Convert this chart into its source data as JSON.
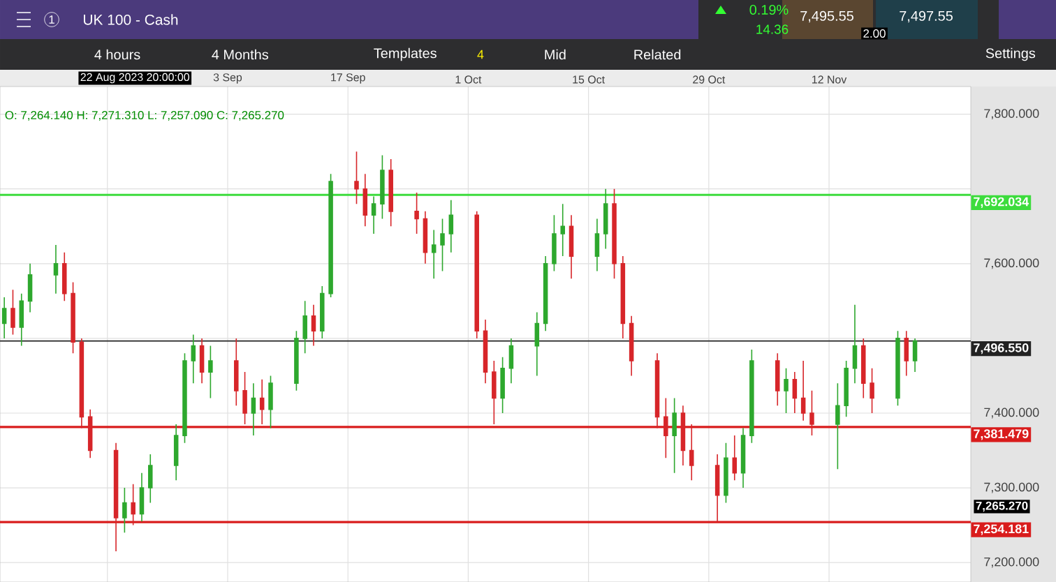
{
  "chart_data": {
    "type": "candlestick",
    "title": "UK 100 - Cash",
    "x": [
      "2023-08-08",
      "2023-08-09",
      "2023-08-10",
      "2023-08-11",
      "2023-08-14",
      "2023-08-15",
      "2023-08-16",
      "2023-08-17",
      "2023-08-18",
      "2023-08-21",
      "2023-08-22",
      "2023-08-23",
      "2023-08-24",
      "2023-08-25",
      "2023-08-28",
      "2023-08-29",
      "2023-08-30",
      "2023-08-31",
      "2023-09-01",
      "2023-09-04",
      "2023-09-05",
      "2023-09-06",
      "2023-09-07",
      "2023-09-08",
      "2023-09-11",
      "2023-09-12",
      "2023-09-13",
      "2023-09-14",
      "2023-09-15",
      "2023-09-18",
      "2023-09-19",
      "2023-09-20",
      "2023-09-21",
      "2023-09-22",
      "2023-09-25",
      "2023-09-26",
      "2023-09-27",
      "2023-09-28",
      "2023-09-29",
      "2023-10-02",
      "2023-10-03",
      "2023-10-04",
      "2023-10-05",
      "2023-10-06",
      "2023-10-09",
      "2023-10-10",
      "2023-10-11",
      "2023-10-12",
      "2023-10-13",
      "2023-10-16",
      "2023-10-17",
      "2023-10-18",
      "2023-10-19",
      "2023-10-20",
      "2023-10-23",
      "2023-10-24",
      "2023-10-25",
      "2023-10-26",
      "2023-10-27",
      "2023-10-30",
      "2023-10-31",
      "2023-11-01",
      "2023-11-02",
      "2023-11-03",
      "2023-11-06",
      "2023-11-07",
      "2023-11-08",
      "2023-11-09",
      "2023-11-10",
      "2023-11-13",
      "2023-11-14",
      "2023-11-15",
      "2023-11-16",
      "2023-11-17",
      "2023-11-20",
      "2023-11-21",
      "2023-11-22"
    ],
    "ohlc": [
      [
        7520,
        7555,
        7500,
        7540
      ],
      [
        7540,
        7565,
        7505,
        7515
      ],
      [
        7515,
        7560,
        7490,
        7550
      ],
      [
        7550,
        7600,
        7535,
        7585
      ],
      [
        7585,
        7625,
        7560,
        7600
      ],
      [
        7600,
        7615,
        7550,
        7560
      ],
      [
        7560,
        7575,
        7480,
        7495
      ],
      [
        7495,
        7500,
        7380,
        7395
      ],
      [
        7395,
        7405,
        7340,
        7350
      ],
      [
        7350,
        7360,
        7215,
        7260
      ],
      [
        7260,
        7300,
        7240,
        7280
      ],
      [
        7280,
        7305,
        7250,
        7265
      ],
      [
        7265,
        7320,
        7255,
        7300
      ],
      [
        7300,
        7345,
        7280,
        7330
      ],
      [
        7330,
        7385,
        7310,
        7370
      ],
      [
        7370,
        7480,
        7360,
        7470
      ],
      [
        7470,
        7505,
        7440,
        7490
      ],
      [
        7490,
        7500,
        7440,
        7455
      ],
      [
        7455,
        7490,
        7420,
        7470
      ],
      [
        7470,
        7500,
        7410,
        7430
      ],
      [
        7430,
        7455,
        7385,
        7400
      ],
      [
        7400,
        7440,
        7370,
        7420
      ],
      [
        7420,
        7445,
        7385,
        7405
      ],
      [
        7405,
        7450,
        7380,
        7440
      ],
      [
        7440,
        7510,
        7430,
        7500
      ],
      [
        7500,
        7550,
        7480,
        7530
      ],
      [
        7530,
        7545,
        7490,
        7510
      ],
      [
        7510,
        7570,
        7500,
        7560
      ],
      [
        7560,
        7720,
        7555,
        7710
      ],
      [
        7710,
        7750,
        7680,
        7700
      ],
      [
        7700,
        7720,
        7650,
        7665
      ],
      [
        7665,
        7690,
        7640,
        7680
      ],
      [
        7680,
        7745,
        7660,
        7725
      ],
      [
        7725,
        7740,
        7650,
        7670
      ],
      [
        7670,
        7695,
        7640,
        7660
      ],
      [
        7660,
        7670,
        7600,
        7615
      ],
      [
        7615,
        7645,
        7580,
        7625
      ],
      [
        7625,
        7660,
        7590,
        7640
      ],
      [
        7640,
        7685,
        7615,
        7665
      ],
      [
        7665,
        7670,
        7500,
        7510
      ],
      [
        7510,
        7525,
        7440,
        7455
      ],
      [
        7455,
        7470,
        7385,
        7420
      ],
      [
        7420,
        7475,
        7400,
        7460
      ],
      [
        7460,
        7500,
        7440,
        7490
      ],
      [
        7490,
        7535,
        7450,
        7520
      ],
      [
        7520,
        7610,
        7510,
        7600
      ],
      [
        7600,
        7665,
        7590,
        7640
      ],
      [
        7640,
        7680,
        7610,
        7650
      ],
      [
        7650,
        7665,
        7580,
        7610
      ],
      [
        7610,
        7660,
        7590,
        7640
      ],
      [
        7640,
        7700,
        7620,
        7680
      ],
      [
        7680,
        7700,
        7580,
        7600
      ],
      [
        7600,
        7610,
        7500,
        7520
      ],
      [
        7520,
        7530,
        7450,
        7470
      ],
      [
        7470,
        7480,
        7380,
        7395
      ],
      [
        7395,
        7420,
        7340,
        7370
      ],
      [
        7370,
        7420,
        7320,
        7400
      ],
      [
        7400,
        7410,
        7330,
        7350
      ],
      [
        7350,
        7385,
        7310,
        7330
      ],
      [
        7330,
        7345,
        7255,
        7290
      ],
      [
        7290,
        7360,
        7280,
        7340
      ],
      [
        7340,
        7370,
        7310,
        7320
      ],
      [
        7320,
        7380,
        7300,
        7370
      ],
      [
        7370,
        7485,
        7360,
        7470
      ],
      [
        7470,
        7480,
        7410,
        7430
      ],
      [
        7430,
        7460,
        7400,
        7445
      ],
      [
        7445,
        7455,
        7400,
        7420
      ],
      [
        7420,
        7470,
        7390,
        7400
      ],
      [
        7400,
        7430,
        7370,
        7385
      ],
      [
        7385,
        7440,
        7325,
        7410
      ],
      [
        7410,
        7470,
        7395,
        7460
      ],
      [
        7460,
        7545,
        7440,
        7490
      ],
      [
        7490,
        7500,
        7420,
        7440
      ],
      [
        7440,
        7460,
        7400,
        7420
      ],
      [
        7420,
        7510,
        7410,
        7500
      ],
      [
        7500,
        7510,
        7450,
        7470
      ],
      [
        7470,
        7500,
        7455,
        7496.55
      ]
    ],
    "colors": [
      "#2ea82e",
      "#d7262a",
      "#2ea82e",
      "#2ea82e",
      "#2ea82e",
      "#d7262a",
      "#d7262a",
      "#d7262a",
      "#d7262a",
      "#d7262a",
      "#2ea82e",
      "#d7262a",
      "#2ea82e",
      "#2ea82e",
      "#2ea82e",
      "#2ea82e",
      "#2ea82e",
      "#d7262a",
      "#2ea82e",
      "#d7262a",
      "#d7262a",
      "#2ea82e",
      "#d7262a",
      "#2ea82e",
      "#2ea82e",
      "#2ea82e",
      "#d7262a",
      "#2ea82e",
      "#2ea82e",
      "#d7262a",
      "#d7262a",
      "#2ea82e",
      "#2ea82e",
      "#d7262a",
      "#d7262a",
      "#d7262a",
      "#2ea82e",
      "#2ea82e",
      "#2ea82e",
      "#d7262a",
      "#d7262a",
      "#d7262a",
      "#2ea82e",
      "#2ea82e",
      "#2ea82e",
      "#2ea82e",
      "#2ea82e",
      "#2ea82e",
      "#d7262a",
      "#2ea82e",
      "#2ea82e",
      "#d7262a",
      "#d7262a",
      "#d7262a",
      "#d7262a",
      "#d7262a",
      "#2ea82e",
      "#d7262a",
      "#d7262a",
      "#d7262a",
      "#2ea82e",
      "#d7262a",
      "#2ea82e",
      "#2ea82e",
      "#d7262a",
      "#2ea82e",
      "#d7262a",
      "#d7262a",
      "#d7262a",
      "#2ea82e",
      "#2ea82e",
      "#2ea82e",
      "#d7262a",
      "#d7262a",
      "#2ea82e",
      "#d7262a",
      "#2ea82e"
    ],
    "xlim": [
      "2023-08-07T12:00",
      "2023-11-28T12:00"
    ],
    "xticks": [
      {
        "value": "2023-08-20",
        "label": null
      },
      {
        "value": "2023-09-03",
        "label": "3 Sep"
      },
      {
        "value": "2023-09-17",
        "label": "17 Sep"
      },
      {
        "value": "2023-10-01",
        "label": "1 Oct"
      },
      {
        "value": "2023-10-15",
        "label": "15 Oct"
      },
      {
        "value": "2023-10-29",
        "label": "29 Oct"
      },
      {
        "value": "2023-11-12",
        "label": "12 Nov"
      }
    ],
    "ylim": [
      7174,
      7837
    ],
    "yticks": [
      {
        "value": 7200,
        "label": "7,200.000"
      },
      {
        "value": 7300,
        "label": "7,300.000"
      },
      {
        "value": 7400,
        "label": "7,400.000"
      },
      {
        "value": 7500,
        "label": null
      },
      {
        "value": 7600,
        "label": "7,600.000"
      },
      {
        "value": 7700,
        "label": null
      },
      {
        "value": 7800,
        "label": "7,800.000"
      }
    ],
    "grid": true,
    "ref_lines": [
      {
        "axis": "y",
        "value": 7692.034,
        "label": "7,692.034",
        "color": "#3ddc3d"
      },
      {
        "axis": "y",
        "value": 7496.55,
        "label": "7,496.550",
        "color": "#222222"
      },
      {
        "axis": "y",
        "value": 7381.479,
        "label": "7,381.479",
        "color": "#d91c1c"
      },
      {
        "axis": "y",
        "value": 7254.181,
        "label": "7,254.181",
        "color": "#d91c1c"
      }
    ],
    "annotations": [
      "0.19%",
      "14.36",
      "7,495.55",
      "7,497.55",
      "2.00",
      "4 hours",
      "4 Months",
      "Templates",
      "4",
      "Mid",
      "Related",
      "Settings",
      "22 Aug 2023 20:00:00",
      "O: 7,264.140  H: 7,271.310  L: 7,257.090  C: 7,265.270",
      "7,265.270",
      "1"
    ]
  }
}
